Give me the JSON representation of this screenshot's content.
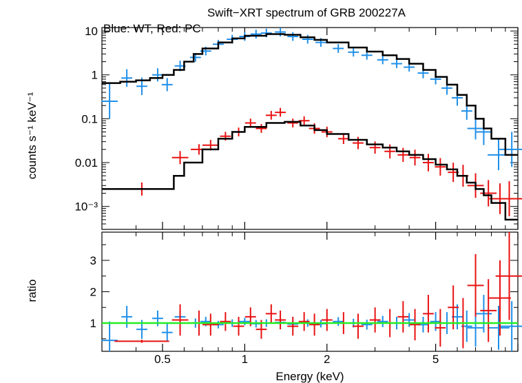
{
  "title": "Swift−XRT spectrum of GRB 200227A",
  "subtitle": "Blue: WT, Red: PC",
  "colors": {
    "wt": "#1f8fe8",
    "pc": "#e81010",
    "model": "#000000",
    "ratio_ref": "#22ee22"
  },
  "chart_data": [
    {
      "type": "scatter",
      "title": "Swift−XRT spectrum of GRB 200227A",
      "subtitle": "Blue: WT, Red: PC",
      "ylabel": "counts s⁻¹ keV⁻¹",
      "xlabel": "Energy (keV)",
      "xscale": "log",
      "yscale": "log",
      "xlim": [
        0.3,
        10
      ],
      "ylim": [
        0.0003,
        12
      ],
      "ytick_labels": [
        "10",
        "1",
        "0.1",
        "0.01",
        "10⁻³"
      ],
      "ytick_values": [
        10,
        1,
        0.1,
        0.01,
        0.001
      ],
      "series": [
        {
          "name": "WT",
          "color": "#1f8fe8",
          "x": [
            0.32,
            0.37,
            0.42,
            0.48,
            0.52,
            0.58,
            0.66,
            0.72,
            0.8,
            0.9,
            1.0,
            1.1,
            1.2,
            1.35,
            1.5,
            1.7,
            1.9,
            2.2,
            2.5,
            2.8,
            3.2,
            3.6,
            4.0,
            4.5,
            5.0,
            5.5,
            6.0,
            6.5,
            7.0,
            7.5,
            8.5,
            9.5
          ],
          "y": [
            0.25,
            0.85,
            0.55,
            1.0,
            0.6,
            1.6,
            2.5,
            3.5,
            5.0,
            6.5,
            7.5,
            8.5,
            9.0,
            9.5,
            7.5,
            6.5,
            5.5,
            4.0,
            3.3,
            2.8,
            2.2,
            1.8,
            1.5,
            1.1,
            0.8,
            0.5,
            0.3,
            0.15,
            0.06,
            0.05,
            0.015,
            0.02
          ],
          "xerr": [
            0.03,
            0.02,
            0.02,
            0.02,
            0.02,
            0.02,
            0.02,
            0.02,
            0.02,
            0.02,
            0.02,
            0.02,
            0.02,
            0.02,
            0.02,
            0.02,
            0.02,
            0.02,
            0.02,
            0.02,
            0.02,
            0.02,
            0.02,
            0.02,
            0.02,
            0.02,
            0.02,
            0.02,
            0.03,
            0.03,
            0.04,
            0.05
          ],
          "yerr": [
            0.4,
            0.2,
            0.2,
            0.15,
            0.15,
            0.12,
            0.1,
            0.1,
            0.1,
            0.1,
            0.1,
            0.1,
            0.1,
            0.1,
            0.1,
            0.1,
            0.1,
            0.1,
            0.1,
            0.1,
            0.1,
            0.1,
            0.1,
            0.12,
            0.12,
            0.15,
            0.18,
            0.2,
            0.25,
            0.3,
            0.35,
            0.4
          ]
        },
        {
          "name": "PC",
          "color": "#e81010",
          "x": [
            0.42,
            0.58,
            0.68,
            0.75,
            0.85,
            0.95,
            1.05,
            1.15,
            1.25,
            1.35,
            1.5,
            1.65,
            1.8,
            2.0,
            2.3,
            2.6,
            3.0,
            3.4,
            3.8,
            4.2,
            4.7,
            5.2,
            5.8,
            6.3,
            7.0,
            7.8,
            8.6,
            9.3
          ],
          "y": [
            0.0025,
            0.013,
            0.02,
            0.025,
            0.04,
            0.05,
            0.08,
            0.06,
            0.12,
            0.14,
            0.08,
            0.09,
            0.06,
            0.05,
            0.035,
            0.028,
            0.022,
            0.018,
            0.015,
            0.013,
            0.01,
            0.008,
            0.006,
            0.005,
            0.003,
            0.002,
            0.0015,
            0.0015
          ],
          "xerr": [
            0.1,
            0.03,
            0.03,
            0.03,
            0.02,
            0.02,
            0.02,
            0.02,
            0.02,
            0.02,
            0.02,
            0.02,
            0.02,
            0.02,
            0.02,
            0.02,
            0.02,
            0.02,
            0.02,
            0.02,
            0.02,
            0.02,
            0.02,
            0.02,
            0.03,
            0.03,
            0.04,
            0.05
          ],
          "yerr": [
            0.15,
            0.15,
            0.12,
            0.12,
            0.1,
            0.1,
            0.1,
            0.1,
            0.1,
            0.1,
            0.1,
            0.1,
            0.12,
            0.12,
            0.12,
            0.14,
            0.14,
            0.16,
            0.16,
            0.18,
            0.2,
            0.2,
            0.22,
            0.25,
            0.28,
            0.3,
            0.35,
            0.4
          ]
        },
        {
          "name": "WT model",
          "color": "#000000",
          "kind": "step",
          "x": [
            0.3,
            0.35,
            0.4,
            0.45,
            0.5,
            0.55,
            0.6,
            0.65,
            0.7,
            0.8,
            0.9,
            1.0,
            1.2,
            1.4,
            1.6,
            1.8,
            2.0,
            2.4,
            2.8,
            3.2,
            3.6,
            4.0,
            4.5,
            5.0,
            5.5,
            6.0,
            6.5,
            7.0,
            7.5,
            8.0,
            9.0,
            10.0
          ],
          "y": [
            0.65,
            0.7,
            0.75,
            0.85,
            1.0,
            1.3,
            2.0,
            3.0,
            4.0,
            5.5,
            6.8,
            7.8,
            8.5,
            8.2,
            7.2,
            6.3,
            5.5,
            4.2,
            3.4,
            2.8,
            2.3,
            1.8,
            1.3,
            0.9,
            0.6,
            0.35,
            0.2,
            0.1,
            0.06,
            0.035,
            0.015,
            0.015
          ]
        },
        {
          "name": "PC model",
          "color": "#000000",
          "kind": "step",
          "x": [
            0.3,
            0.55,
            0.6,
            0.7,
            0.8,
            0.9,
            1.0,
            1.2,
            1.4,
            1.6,
            1.8,
            2.0,
            2.4,
            2.8,
            3.2,
            3.6,
            4.0,
            4.5,
            5.0,
            5.5,
            6.0,
            6.5,
            7.0,
            7.5,
            8.0,
            9.0,
            10.0
          ],
          "y": [
            0.0025,
            0.005,
            0.01,
            0.02,
            0.035,
            0.05,
            0.065,
            0.08,
            0.085,
            0.07,
            0.055,
            0.045,
            0.033,
            0.026,
            0.022,
            0.018,
            0.015,
            0.012,
            0.009,
            0.007,
            0.005,
            0.0035,
            0.0025,
            0.0018,
            0.0012,
            0.0005,
            0.0003
          ]
        }
      ]
    },
    {
      "type": "scatter",
      "ylabel": "ratio",
      "xlabel": "Energy (keV)",
      "xscale": "log",
      "xlim": [
        0.3,
        10
      ],
      "ylim": [
        0.1,
        3.9
      ],
      "xtick_labels": [
        "0.5",
        "1",
        "2",
        "5"
      ],
      "xtick_values": [
        0.5,
        1,
        2,
        5
      ],
      "ytick_labels": [
        "1",
        "2",
        "3"
      ],
      "ytick_values": [
        1,
        2,
        3
      ],
      "reference_line": 1,
      "series": [
        {
          "name": "WT",
          "color": "#1f8fe8",
          "x": [
            0.32,
            0.37,
            0.42,
            0.48,
            0.52,
            0.58,
            0.66,
            0.72,
            0.8,
            0.9,
            1.0,
            1.1,
            1.2,
            1.35,
            1.5,
            1.7,
            1.9,
            2.2,
            2.5,
            2.8,
            3.2,
            3.6,
            4.0,
            4.5,
            5.0,
            5.5,
            6.0,
            6.5,
            7.0,
            7.5,
            8.5,
            9.5
          ],
          "y": [
            0.45,
            1.2,
            0.8,
            1.15,
            0.7,
            1.2,
            1.0,
            1.05,
            0.95,
            1.0,
            1.05,
            0.98,
            1.0,
            1.02,
            0.97,
            1.0,
            0.98,
            1.05,
            1.0,
            0.95,
            1.05,
            1.0,
            1.1,
            0.95,
            1.05,
            1.0,
            1.2,
            0.9,
            0.85,
            1.3,
            0.85,
            0.9
          ],
          "xerr": [
            0.03,
            0.02,
            0.02,
            0.02,
            0.02,
            0.02,
            0.02,
            0.02,
            0.02,
            0.02,
            0.02,
            0.02,
            0.02,
            0.02,
            0.02,
            0.02,
            0.02,
            0.02,
            0.02,
            0.02,
            0.02,
            0.02,
            0.02,
            0.02,
            0.02,
            0.02,
            0.02,
            0.02,
            0.03,
            0.03,
            0.04,
            0.05
          ],
          "yerr": [
            0.6,
            0.35,
            0.3,
            0.25,
            0.3,
            0.2,
            0.15,
            0.15,
            0.12,
            0.12,
            0.12,
            0.12,
            0.12,
            0.12,
            0.12,
            0.12,
            0.12,
            0.14,
            0.14,
            0.16,
            0.18,
            0.2,
            0.22,
            0.25,
            0.3,
            0.35,
            0.4,
            0.5,
            0.6,
            0.6,
            0.7,
            0.8
          ]
        },
        {
          "name": "PC",
          "color": "#e81010",
          "x": [
            0.42,
            0.58,
            0.68,
            0.75,
            0.85,
            0.95,
            1.05,
            1.15,
            1.25,
            1.35,
            1.5,
            1.65,
            1.8,
            2.0,
            2.3,
            2.6,
            3.0,
            3.4,
            3.8,
            4.2,
            4.7,
            5.2,
            5.8,
            6.3,
            7.0,
            7.8,
            8.6,
            9.3
          ],
          "y": [
            0.42,
            1.1,
            1.0,
            0.95,
            1.05,
            0.9,
            1.2,
            0.8,
            1.3,
            1.1,
            0.9,
            1.05,
            0.95,
            1.1,
            1.0,
            0.9,
            1.1,
            1.0,
            1.2,
            0.95,
            1.3,
            0.85,
            1.5,
            1.0,
            2.2,
            1.4,
            1.8,
            2.5
          ],
          "xerr": [
            0.1,
            0.03,
            0.03,
            0.03,
            0.02,
            0.02,
            0.02,
            0.02,
            0.02,
            0.02,
            0.02,
            0.02,
            0.02,
            0.02,
            0.02,
            0.02,
            0.02,
            0.02,
            0.02,
            0.02,
            0.02,
            0.02,
            0.02,
            0.02,
            0.03,
            0.03,
            0.04,
            0.05
          ],
          "yerr": [
            0.05,
            0.5,
            0.4,
            0.35,
            0.3,
            0.3,
            0.3,
            0.3,
            0.3,
            0.3,
            0.3,
            0.3,
            0.35,
            0.35,
            0.35,
            0.4,
            0.4,
            0.45,
            0.5,
            0.5,
            0.6,
            0.6,
            0.7,
            0.8,
            1.0,
            1.0,
            1.2,
            1.4
          ]
        }
      ]
    }
  ]
}
